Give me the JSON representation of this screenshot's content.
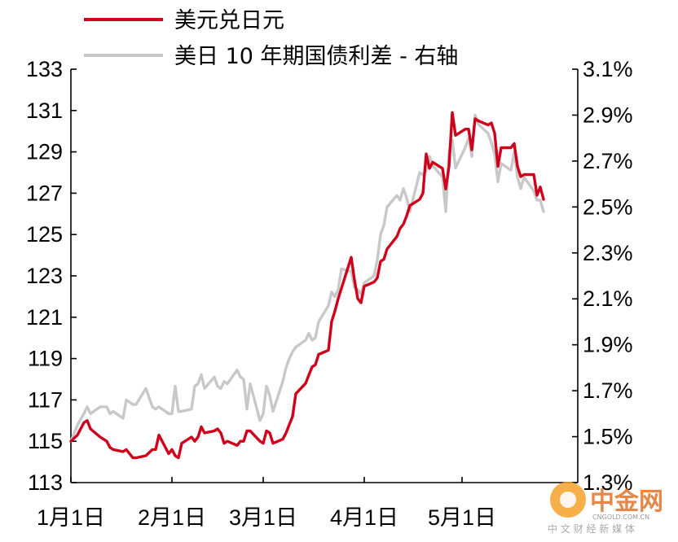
{
  "chart_data": {
    "type": "line",
    "legend": {
      "placement": "top-left",
      "entries": [
        {
          "name": "美元兑日元",
          "color": "#d0021b"
        },
        {
          "name": "美日 10 年期国债利差 - 右轴",
          "color": "#c8c8c8"
        }
      ]
    },
    "x_axis": {
      "type": "date",
      "range": [
        "2022-01-01",
        "2022-05-31"
      ],
      "tick_labels": [
        "1月1日",
        "2月1日",
        "3月1日",
        "4月1日",
        "5月1日"
      ],
      "tick_dates": [
        "2022-01-01",
        "2022-02-01",
        "2022-03-01",
        "2022-04-01",
        "2022-05-01"
      ]
    },
    "y_left": {
      "range": [
        113,
        133
      ],
      "ticks": [
        113,
        115,
        117,
        119,
        121,
        123,
        125,
        127,
        129,
        131,
        133
      ],
      "tick_labels": [
        "113",
        "115",
        "117",
        "119",
        "121",
        "123",
        "125",
        "127",
        "129",
        "131",
        "133"
      ]
    },
    "y_right": {
      "range": [
        1.3,
        3.1
      ],
      "ticks": [
        1.3,
        1.5,
        1.7,
        1.9,
        2.1,
        2.3,
        2.5,
        2.7,
        2.9,
        3.1
      ],
      "tick_labels": [
        "1.3%",
        "1.5%",
        "1.7%",
        "1.9%",
        "2.1%",
        "2.3%",
        "2.5%",
        "2.7%",
        "2.9%",
        "3.1%"
      ]
    },
    "series": [
      {
        "name": "美元兑日元",
        "axis": "left",
        "color": "#d0021b",
        "points": [
          [
            "2022-01-01",
            115.0
          ],
          [
            "2022-01-03",
            115.3
          ],
          [
            "2022-01-05",
            115.9
          ],
          [
            "2022-01-06",
            116.0
          ],
          [
            "2022-01-07",
            115.6
          ],
          [
            "2022-01-10",
            115.2
          ],
          [
            "2022-01-12",
            115.0
          ],
          [
            "2022-01-13",
            114.7
          ],
          [
            "2022-01-14",
            114.6
          ],
          [
            "2022-01-17",
            114.5
          ],
          [
            "2022-01-18",
            114.6
          ],
          [
            "2022-01-20",
            114.2
          ],
          [
            "2022-01-21",
            114.2
          ],
          [
            "2022-01-24",
            114.3
          ],
          [
            "2022-01-26",
            114.6
          ],
          [
            "2022-01-27",
            114.6
          ],
          [
            "2022-01-28",
            115.3
          ],
          [
            "2022-01-31",
            114.4
          ],
          [
            "2022-02-01",
            114.6
          ],
          [
            "2022-02-02",
            114.3
          ],
          [
            "2022-02-03",
            114.2
          ],
          [
            "2022-02-04",
            114.9
          ],
          [
            "2022-02-07",
            115.2
          ],
          [
            "2022-02-08",
            115.0
          ],
          [
            "2022-02-09",
            115.2
          ],
          [
            "2022-02-10",
            115.7
          ],
          [
            "2022-02-11",
            115.4
          ],
          [
            "2022-02-14",
            115.5
          ],
          [
            "2022-02-15",
            115.6
          ],
          [
            "2022-02-16",
            115.4
          ],
          [
            "2022-02-17",
            114.9
          ],
          [
            "2022-02-18",
            115.0
          ],
          [
            "2022-02-21",
            114.8
          ],
          [
            "2022-02-22",
            115.0
          ],
          [
            "2022-02-23",
            115.0
          ],
          [
            "2022-02-24",
            115.5
          ],
          [
            "2022-02-25",
            115.5
          ],
          [
            "2022-02-28",
            115.0
          ],
          [
            "2022-03-01",
            114.9
          ],
          [
            "2022-03-02",
            115.5
          ],
          [
            "2022-03-03",
            115.4
          ],
          [
            "2022-03-04",
            114.9
          ],
          [
            "2022-03-07",
            115.1
          ],
          [
            "2022-03-08",
            115.4
          ],
          [
            "2022-03-09",
            115.8
          ],
          [
            "2022-03-10",
            116.2
          ],
          [
            "2022-03-11",
            117.3
          ],
          [
            "2022-03-14",
            117.8
          ],
          [
            "2022-03-15",
            118.2
          ],
          [
            "2022-03-16",
            118.6
          ],
          [
            "2022-03-17",
            118.7
          ],
          [
            "2022-03-18",
            119.2
          ],
          [
            "2022-03-21",
            119.4
          ],
          [
            "2022-03-22",
            120.8
          ],
          [
            "2022-03-23",
            121.3
          ],
          [
            "2022-03-24",
            121.9
          ],
          [
            "2022-03-25",
            122.4
          ],
          [
            "2022-03-28",
            123.9
          ],
          [
            "2022-03-29",
            122.8
          ],
          [
            "2022-03-30",
            121.9
          ],
          [
            "2022-03-31",
            121.7
          ],
          [
            "2022-04-01",
            122.5
          ],
          [
            "2022-04-04",
            122.7
          ],
          [
            "2022-04-05",
            122.9
          ],
          [
            "2022-04-06",
            123.7
          ],
          [
            "2022-04-07",
            123.8
          ],
          [
            "2022-04-08",
            124.3
          ],
          [
            "2022-04-11",
            124.9
          ],
          [
            "2022-04-12",
            125.3
          ],
          [
            "2022-04-13",
            125.5
          ],
          [
            "2022-04-14",
            125.9
          ],
          [
            "2022-04-15",
            126.4
          ],
          [
            "2022-04-18",
            126.7
          ],
          [
            "2022-04-19",
            127.0
          ],
          [
            "2022-04-20",
            128.9
          ],
          [
            "2022-04-21",
            128.2
          ],
          [
            "2022-04-22",
            128.5
          ],
          [
            "2022-04-25",
            128.2
          ],
          [
            "2022-04-26",
            127.2
          ],
          [
            "2022-04-27",
            128.3
          ],
          [
            "2022-04-28",
            130.9
          ],
          [
            "2022-04-29",
            129.8
          ],
          [
            "2022-05-02",
            130.1
          ],
          [
            "2022-05-03",
            130.1
          ],
          [
            "2022-05-04",
            129.1
          ],
          [
            "2022-05-05",
            130.6
          ],
          [
            "2022-05-06",
            130.5
          ],
          [
            "2022-05-09",
            130.3
          ],
          [
            "2022-05-10",
            130.4
          ],
          [
            "2022-05-11",
            129.9
          ],
          [
            "2022-05-12",
            128.3
          ],
          [
            "2022-05-13",
            129.2
          ],
          [
            "2022-05-16",
            129.2
          ],
          [
            "2022-05-17",
            129.4
          ],
          [
            "2022-05-18",
            128.3
          ],
          [
            "2022-05-19",
            127.8
          ],
          [
            "2022-05-20",
            127.9
          ],
          [
            "2022-05-23",
            127.9
          ],
          [
            "2022-05-24",
            126.9
          ],
          [
            "2022-05-25",
            127.3
          ],
          [
            "2022-05-26",
            126.7
          ]
        ]
      },
      {
        "name": "美日 10 年期国债利差 - 右轴",
        "axis": "right",
        "color": "#c8c8c8",
        "points": [
          [
            "2022-01-01",
            1.48
          ],
          [
            "2022-01-03",
            1.55
          ],
          [
            "2022-01-05",
            1.6
          ],
          [
            "2022-01-06",
            1.63
          ],
          [
            "2022-01-07",
            1.6
          ],
          [
            "2022-01-10",
            1.63
          ],
          [
            "2022-01-12",
            1.63
          ],
          [
            "2022-01-13",
            1.6
          ],
          [
            "2022-01-14",
            1.61
          ],
          [
            "2022-01-17",
            1.58
          ],
          [
            "2022-01-18",
            1.66
          ],
          [
            "2022-01-20",
            1.64
          ],
          [
            "2022-01-21",
            1.64
          ],
          [
            "2022-01-24",
            1.71
          ],
          [
            "2022-01-26",
            1.63
          ],
          [
            "2022-01-27",
            1.62
          ],
          [
            "2022-01-28",
            1.63
          ],
          [
            "2022-01-31",
            1.6
          ],
          [
            "2022-02-01",
            1.6
          ],
          [
            "2022-02-02",
            1.72
          ],
          [
            "2022-02-03",
            1.61
          ],
          [
            "2022-02-04",
            1.61
          ],
          [
            "2022-02-07",
            1.62
          ],
          [
            "2022-02-08",
            1.72
          ],
          [
            "2022-02-09",
            1.73
          ],
          [
            "2022-02-10",
            1.77
          ],
          [
            "2022-02-11",
            1.71
          ],
          [
            "2022-02-14",
            1.76
          ],
          [
            "2022-02-15",
            1.72
          ],
          [
            "2022-02-16",
            1.71
          ],
          [
            "2022-02-17",
            1.74
          ],
          [
            "2022-02-18",
            1.73
          ],
          [
            "2022-02-21",
            1.79
          ],
          [
            "2022-02-22",
            1.76
          ],
          [
            "2022-02-23",
            1.75
          ],
          [
            "2022-02-24",
            1.62
          ],
          [
            "2022-02-25",
            1.73
          ],
          [
            "2022-02-28",
            1.57
          ],
          [
            "2022-03-01",
            1.6
          ],
          [
            "2022-03-02",
            1.72
          ],
          [
            "2022-03-03",
            1.68
          ],
          [
            "2022-03-04",
            1.61
          ],
          [
            "2022-03-07",
            1.74
          ],
          [
            "2022-03-08",
            1.8
          ],
          [
            "2022-03-09",
            1.84
          ],
          [
            "2022-03-10",
            1.87
          ],
          [
            "2022-03-11",
            1.89
          ],
          [
            "2022-03-14",
            1.92
          ],
          [
            "2022-03-15",
            1.95
          ],
          [
            "2022-03-16",
            1.92
          ],
          [
            "2022-03-17",
            1.93
          ],
          [
            "2022-03-18",
            2.0
          ],
          [
            "2022-03-21",
            2.07
          ],
          [
            "2022-03-22",
            2.13
          ],
          [
            "2022-03-23",
            2.11
          ],
          [
            "2022-03-24",
            2.14
          ],
          [
            "2022-03-25",
            2.23
          ],
          [
            "2022-03-28",
            2.22
          ],
          [
            "2022-03-29",
            2.15
          ],
          [
            "2022-03-30",
            2.14
          ],
          [
            "2022-03-31",
            2.12
          ],
          [
            "2022-04-01",
            2.17
          ],
          [
            "2022-04-04",
            2.2
          ],
          [
            "2022-04-05",
            2.27
          ],
          [
            "2022-04-06",
            2.38
          ],
          [
            "2022-04-07",
            2.42
          ],
          [
            "2022-04-08",
            2.5
          ],
          [
            "2022-04-11",
            2.55
          ],
          [
            "2022-04-12",
            2.53
          ],
          [
            "2022-04-13",
            2.58
          ],
          [
            "2022-04-14",
            2.54
          ],
          [
            "2022-04-15",
            2.48
          ],
          [
            "2022-04-18",
            2.65
          ],
          [
            "2022-04-19",
            2.64
          ],
          [
            "2022-04-20",
            2.66
          ],
          [
            "2022-04-21",
            2.72
          ],
          [
            "2022-04-22",
            2.68
          ],
          [
            "2022-04-25",
            2.63
          ],
          [
            "2022-04-26",
            2.48
          ],
          [
            "2022-04-27",
            2.74
          ],
          [
            "2022-04-28",
            2.79
          ],
          [
            "2022-04-29",
            2.67
          ],
          [
            "2022-05-02",
            2.76
          ],
          [
            "2022-05-03",
            2.8
          ],
          [
            "2022-05-04",
            2.72
          ],
          [
            "2022-05-05",
            2.9
          ],
          [
            "2022-05-06",
            2.86
          ],
          [
            "2022-05-09",
            2.82
          ],
          [
            "2022-05-10",
            2.78
          ],
          [
            "2022-05-11",
            2.73
          ],
          [
            "2022-05-12",
            2.61
          ],
          [
            "2022-05-13",
            2.69
          ],
          [
            "2022-05-16",
            2.66
          ],
          [
            "2022-05-17",
            2.74
          ],
          [
            "2022-05-18",
            2.63
          ],
          [
            "2022-05-19",
            2.58
          ],
          [
            "2022-05-20",
            2.63
          ],
          [
            "2022-05-23",
            2.57
          ],
          [
            "2022-05-24",
            2.53
          ],
          [
            "2022-05-25",
            2.53
          ],
          [
            "2022-05-26",
            2.48
          ]
        ]
      }
    ]
  },
  "watermark": {
    "brand": "中金网",
    "domain": "CNGOLD.COM.CN",
    "tagline": "中 文 财 经 新 媒 体"
  }
}
